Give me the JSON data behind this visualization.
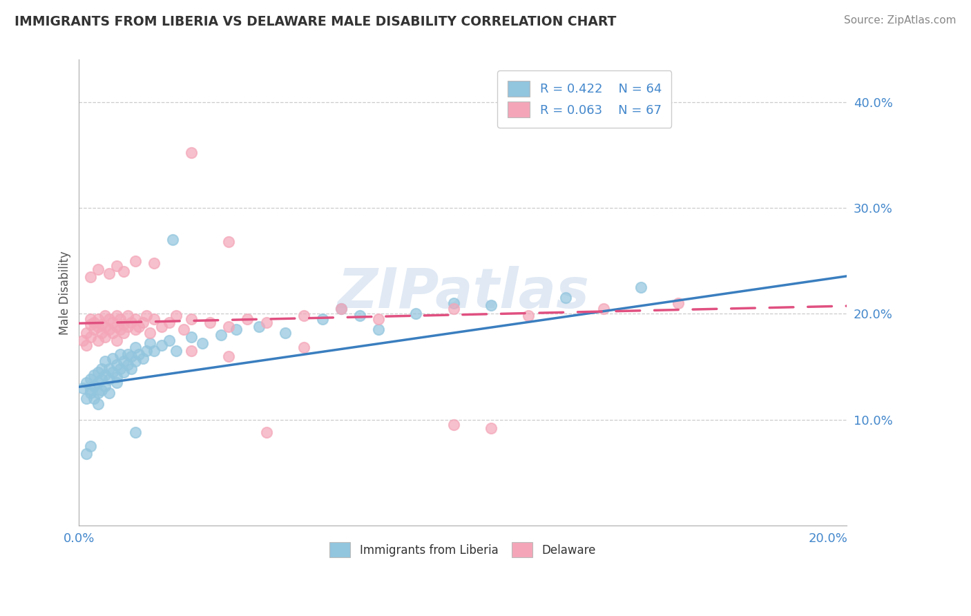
{
  "title": "IMMIGRANTS FROM LIBERIA VS DELAWARE MALE DISABILITY CORRELATION CHART",
  "source": "Source: ZipAtlas.com",
  "ylabel": "Male Disability",
  "xlim": [
    0.0,
    0.205
  ],
  "ylim": [
    0.0,
    0.44
  ],
  "yticks": [
    0.1,
    0.2,
    0.3,
    0.4
  ],
  "ytick_labels": [
    "10.0%",
    "20.0%",
    "30.0%",
    "40.0%"
  ],
  "xticks": [
    0.0,
    0.025,
    0.05,
    0.075,
    0.1,
    0.125,
    0.15,
    0.175,
    0.2
  ],
  "xtick_labels": [
    "0.0%",
    "",
    "",
    "",
    "",
    "",
    "",
    "",
    "20.0%"
  ],
  "color_blue": "#92c5de",
  "color_pink": "#f4a6b8",
  "color_blue_line": "#3a7ebf",
  "color_pink_line": "#e05080",
  "background": "#ffffff",
  "watermark": "ZIPatlas",
  "blue_line_x0": 0.0,
  "blue_line_y0": 0.131,
  "blue_line_x1": 0.2,
  "blue_line_y1": 0.233,
  "pink_line_x0": 0.0,
  "pink_line_y0": 0.191,
  "pink_line_x1": 0.2,
  "pink_line_y1": 0.207,
  "blue_scatter_x": [
    0.001,
    0.002,
    0.002,
    0.003,
    0.003,
    0.003,
    0.004,
    0.004,
    0.004,
    0.005,
    0.005,
    0.005,
    0.005,
    0.006,
    0.006,
    0.006,
    0.007,
    0.007,
    0.007,
    0.008,
    0.008,
    0.008,
    0.009,
    0.009,
    0.01,
    0.01,
    0.01,
    0.011,
    0.011,
    0.012,
    0.012,
    0.013,
    0.013,
    0.014,
    0.014,
    0.015,
    0.015,
    0.016,
    0.017,
    0.018,
    0.019,
    0.02,
    0.022,
    0.024,
    0.026,
    0.03,
    0.033,
    0.038,
    0.042,
    0.048,
    0.055,
    0.065,
    0.07,
    0.075,
    0.08,
    0.09,
    0.1,
    0.11,
    0.13,
    0.15,
    0.002,
    0.003,
    0.015,
    0.025
  ],
  "blue_scatter_y": [
    0.13,
    0.135,
    0.12,
    0.128,
    0.138,
    0.125,
    0.132,
    0.142,
    0.12,
    0.135,
    0.125,
    0.145,
    0.115,
    0.138,
    0.128,
    0.148,
    0.142,
    0.132,
    0.155,
    0.138,
    0.148,
    0.125,
    0.145,
    0.158,
    0.14,
    0.152,
    0.135,
    0.148,
    0.162,
    0.145,
    0.155,
    0.152,
    0.162,
    0.148,
    0.16,
    0.155,
    0.168,
    0.162,
    0.158,
    0.165,
    0.172,
    0.165,
    0.17,
    0.175,
    0.165,
    0.178,
    0.172,
    0.18,
    0.185,
    0.188,
    0.182,
    0.195,
    0.205,
    0.198,
    0.185,
    0.2,
    0.21,
    0.208,
    0.215,
    0.225,
    0.068,
    0.075,
    0.088,
    0.27
  ],
  "pink_scatter_x": [
    0.001,
    0.002,
    0.002,
    0.003,
    0.003,
    0.003,
    0.004,
    0.004,
    0.005,
    0.005,
    0.005,
    0.006,
    0.006,
    0.007,
    0.007,
    0.007,
    0.008,
    0.008,
    0.009,
    0.009,
    0.01,
    0.01,
    0.01,
    0.011,
    0.011,
    0.012,
    0.012,
    0.013,
    0.013,
    0.014,
    0.015,
    0.015,
    0.016,
    0.017,
    0.018,
    0.019,
    0.02,
    0.022,
    0.024,
    0.026,
    0.028,
    0.03,
    0.035,
    0.04,
    0.045,
    0.05,
    0.06,
    0.07,
    0.08,
    0.1,
    0.12,
    0.14,
    0.16,
    0.003,
    0.005,
    0.008,
    0.01,
    0.012,
    0.015,
    0.02,
    0.03,
    0.04,
    0.06,
    0.03,
    0.05,
    0.11,
    0.04,
    0.1
  ],
  "pink_scatter_y": [
    0.175,
    0.182,
    0.17,
    0.178,
    0.19,
    0.195,
    0.185,
    0.192,
    0.175,
    0.188,
    0.195,
    0.182,
    0.19,
    0.178,
    0.188,
    0.198,
    0.185,
    0.195,
    0.182,
    0.192,
    0.188,
    0.198,
    0.175,
    0.185,
    0.195,
    0.19,
    0.182,
    0.188,
    0.198,
    0.192,
    0.185,
    0.195,
    0.188,
    0.192,
    0.198,
    0.182,
    0.195,
    0.188,
    0.192,
    0.198,
    0.185,
    0.195,
    0.192,
    0.188,
    0.195,
    0.192,
    0.198,
    0.205,
    0.195,
    0.205,
    0.198,
    0.205,
    0.21,
    0.235,
    0.242,
    0.238,
    0.245,
    0.24,
    0.25,
    0.248,
    0.165,
    0.16,
    0.168,
    0.352,
    0.088,
    0.092,
    0.268,
    0.095
  ]
}
